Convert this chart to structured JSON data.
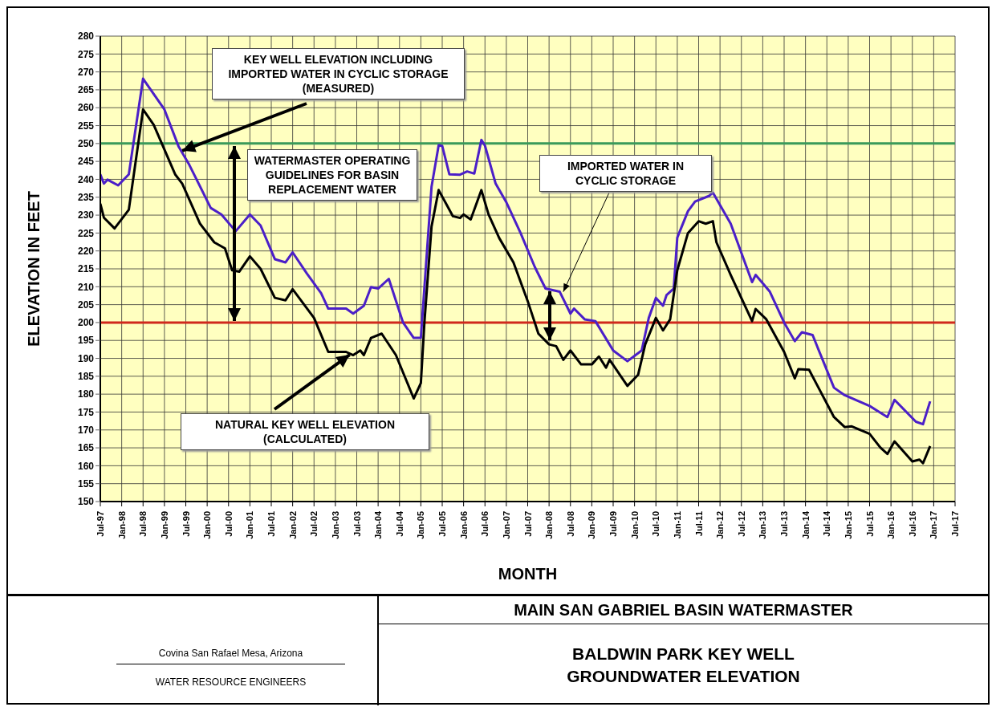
{
  "chart_data": {
    "type": "line",
    "title": "BALDWIN PARK KEY WELL GROUNDWATER ELEVATION",
    "subtitle": "MAIN SAN GABRIEL BASIN WATERMASTER",
    "xlabel": "MONTH",
    "ylabel": "ELEVATION IN FEET",
    "annotations": [
      {
        "text": "KEY WELL ELEVATION INCLUDING IMPORTED WATER IN CYCLIC STORAGE (MEASURED)",
        "x": "1999-06",
        "y": 248
      },
      "WATERMASTER OPERATING GUIDELINES FOR BASIN REPLACEMENT WATER",
      {
        "text": "IMPORTED WATER IN CYCLIC STORAGE",
        "x": "2008-05",
        "y": 208.6
      },
      {
        "text": "NATURAL KEY WELL ELEVATION (CALCULATED)",
        "x": "2003-05",
        "y": 191
      },
      "Covina  San Rafael  Mesa, Arizona",
      "WATER RESOURCE ENGINEERS"
    ],
    "series": [
      {
        "color": "#4b1fc8",
        "x": [
          "1997-07",
          "1997-08",
          "1997-09",
          "1997-12",
          "1998-03",
          "1998-07",
          "1999-01",
          "1999-05",
          "1999-08",
          "2000-02",
          "2000-05",
          "2000-09",
          "2001-01",
          "2001-04",
          "2001-08",
          "2001-11",
          "2002-01",
          "2002-05",
          "2002-09",
          "2002-11",
          "2003-04",
          "2003-06",
          "2003-09",
          "2003-11",
          "2004-01",
          "2004-04",
          "2004-08",
          "2004-11",
          "2005-01",
          "2005-04",
          "2005-06",
          "2005-07",
          "2005-09",
          "2005-12",
          "2006-02",
          "2006-04",
          "2006-06",
          "2006-07",
          "2006-10",
          "2007-01",
          "2007-05",
          "2007-09",
          "2007-12",
          "2008-04",
          "2008-07",
          "2008-08",
          "2008-11",
          "2009-02",
          "2009-07",
          "2009-11",
          "2010-03",
          "2010-05",
          "2010-07",
          "2010-09",
          "2010-10",
          "2010-12",
          "2011-01",
          "2011-04",
          "2011-06",
          "2011-10",
          "2011-11",
          "2012-04",
          "2012-10",
          "2012-11",
          "2013-03",
          "2013-07",
          "2013-10",
          "2013-12",
          "2014-03",
          "2014-09",
          "2014-12",
          "2015-07",
          "2015-12",
          "2016-02",
          "2016-08",
          "2016-10",
          "2016-12"
        ],
        "values": [
          241.4,
          238.8,
          239.9,
          238.3,
          241.4,
          268.1,
          259.5,
          249.1,
          244,
          232,
          230.2,
          225.5,
          230.2,
          227.1,
          217.7,
          216.8,
          219.6,
          213.7,
          208.2,
          203.9,
          203.9,
          202.5,
          204.7,
          209.9,
          209.5,
          212.2,
          200,
          195.7,
          195.7,
          237.9,
          249.5,
          249.3,
          241.4,
          241.3,
          242.2,
          241.6,
          251,
          249.4,
          238.8,
          233.6,
          225,
          215.5,
          209.5,
          208.6,
          202.5,
          203.9,
          200.9,
          200.4,
          192.2,
          189.2,
          192.2,
          201.3,
          206.9,
          204.7,
          207.7,
          209.5,
          223.7,
          231.1,
          233.8,
          235.4,
          236.3,
          227.6,
          211.3,
          213.3,
          208.6,
          200,
          194.8,
          197.3,
          196.5,
          181.8,
          179.7,
          176.7,
          173.6,
          178.4,
          172.3,
          171.6,
          178
        ]
      },
      {
        "color": "#000000",
        "x": [
          "1997-07",
          "1997-08",
          "1997-11",
          "1998-03",
          "1998-07",
          "1998-10",
          "1999-04",
          "1999-06",
          "1999-11",
          "2000-03",
          "2000-06",
          "2000-08",
          "2000-10",
          "2001-01",
          "2001-04",
          "2001-08",
          "2001-11",
          "2002-01",
          "2002-07",
          "2002-11",
          "2003-04",
          "2003-06",
          "2003-08",
          "2003-09",
          "2003-11",
          "2004-02",
          "2004-06",
          "2004-11",
          "2005-01",
          "2005-02",
          "2005-04",
          "2005-06",
          "2005-10",
          "2005-12",
          "2006-01",
          "2006-03",
          "2006-06",
          "2006-08",
          "2006-11",
          "2007-03",
          "2007-07",
          "2007-10",
          "2008-01",
          "2008-03",
          "2008-05",
          "2008-07",
          "2008-10",
          "2009-01",
          "2009-03",
          "2009-05",
          "2009-06",
          "2009-11",
          "2010-02",
          "2010-04",
          "2010-07",
          "2010-09",
          "2010-11",
          "2011-01",
          "2011-04",
          "2011-07",
          "2011-09",
          "2011-11",
          "2011-12",
          "2012-04",
          "2012-10",
          "2012-11",
          "2013-02",
          "2013-07",
          "2013-10",
          "2013-11",
          "2014-02",
          "2014-09",
          "2014-12",
          "2015-02",
          "2015-07",
          "2015-10",
          "2015-12",
          "2016-02",
          "2016-07",
          "2016-09",
          "2016-10",
          "2016-12"
        ],
        "values": [
          233.2,
          229.3,
          226.3,
          231.5,
          259.5,
          255.2,
          241.4,
          238.8,
          227.6,
          222.4,
          220.7,
          214.6,
          214.2,
          218.5,
          215,
          206.9,
          206.2,
          209.3,
          201.3,
          191.8,
          191.8,
          190.9,
          192.2,
          190.9,
          195.7,
          196.9,
          190.9,
          178.8,
          183.1,
          200,
          226.8,
          237,
          229.7,
          229.2,
          230.2,
          228.8,
          237,
          230.2,
          223.6,
          216.8,
          206,
          196.9,
          193.9,
          193.4,
          189.6,
          192.2,
          188.3,
          188.3,
          190.5,
          187.4,
          189.6,
          182.3,
          185.4,
          193.9,
          201.3,
          197.8,
          200.9,
          214.6,
          225,
          228.3,
          227.6,
          228.3,
          222.4,
          213.3,
          200.4,
          203.8,
          200.9,
          191.8,
          184.4,
          187,
          186.8,
          173.6,
          170.8,
          171,
          168.9,
          165.1,
          163.3,
          166.8,
          161.2,
          161.7,
          160.7,
          165.5
        ]
      }
    ],
    "xlim": [
      "1997-07",
      "2017-07"
    ],
    "xticks": [
      {
        "value": "1997-07",
        "label": "Jul-97"
      },
      {
        "value": "1998-01",
        "label": "Jan-98"
      },
      {
        "value": "1998-07",
        "label": "Jul-98"
      },
      {
        "value": "1999-01",
        "label": "Jan-99"
      },
      {
        "value": "1999-07",
        "label": "Jul-99"
      },
      {
        "value": "2000-01",
        "label": "Jan-00"
      },
      {
        "value": "2000-07",
        "label": "Jul-00"
      },
      {
        "value": "2001-01",
        "label": "Jan-01"
      },
      {
        "value": "2001-07",
        "label": "Jul-01"
      },
      {
        "value": "2002-01",
        "label": "Jan-02"
      },
      {
        "value": "2002-07",
        "label": "Jul-02"
      },
      {
        "value": "2003-01",
        "label": "Jan-03"
      },
      {
        "value": "2003-07",
        "label": "Jul-03"
      },
      {
        "value": "2004-01",
        "label": "Jan-04"
      },
      {
        "value": "2004-07",
        "label": "Jul-04"
      },
      {
        "value": "2005-01",
        "label": "Jan-05"
      },
      {
        "value": "2005-07",
        "label": "Jul-05"
      },
      {
        "value": "2006-01",
        "label": "Jan-06"
      },
      {
        "value": "2006-07",
        "label": "Jul-06"
      },
      {
        "value": "2007-01",
        "label": "Jan-07"
      },
      {
        "value": "2007-07",
        "label": "Jul-07"
      },
      {
        "value": "2008-01",
        "label": "Jan-08"
      },
      {
        "value": "2008-07",
        "label": "Jul-08"
      },
      {
        "value": "2009-01",
        "label": "Jan-09"
      },
      {
        "value": "2009-07",
        "label": "Jul-09"
      },
      {
        "value": "2010-01",
        "label": "Jan-10"
      },
      {
        "value": "2010-07",
        "label": "Jul-10"
      },
      {
        "value": "2011-01",
        "label": "Jan-11"
      },
      {
        "value": "2011-07",
        "label": "Jul-11"
      },
      {
        "value": "2012-01",
        "label": "Jan-12"
      },
      {
        "value": "2012-07",
        "label": "Jul-12"
      },
      {
        "value": "2013-01",
        "label": "Jan-13"
      },
      {
        "value": "2013-07",
        "label": "Jul-13"
      },
      {
        "value": "2014-01",
        "label": "Jan-14"
      },
      {
        "value": "2014-07",
        "label": "Jul-14"
      },
      {
        "value": "2015-01",
        "label": "Jan-15"
      },
      {
        "value": "2015-07",
        "label": "Jul-15"
      },
      {
        "value": "2016-01",
        "label": "Jan-16"
      },
      {
        "value": "2016-07",
        "label": "Jul-16"
      },
      {
        "value": "2017-01",
        "label": "Jan-17"
      },
      {
        "value": "2017-07",
        "label": "Jul-17"
      }
    ],
    "ylim": [
      150,
      280
    ],
    "yticks": [
      150,
      155,
      160,
      165,
      170,
      175,
      180,
      185,
      190,
      195,
      200,
      205,
      210,
      215,
      220,
      225,
      230,
      235,
      240,
      245,
      250,
      255,
      260,
      265,
      270,
      275,
      280
    ],
    "grid": true,
    "ref_lines": [
      {
        "axis": "y",
        "value": 250,
        "color": "#3a9a5a"
      },
      {
        "axis": "y",
        "value": 200,
        "color": "#d0281c"
      }
    ]
  }
}
